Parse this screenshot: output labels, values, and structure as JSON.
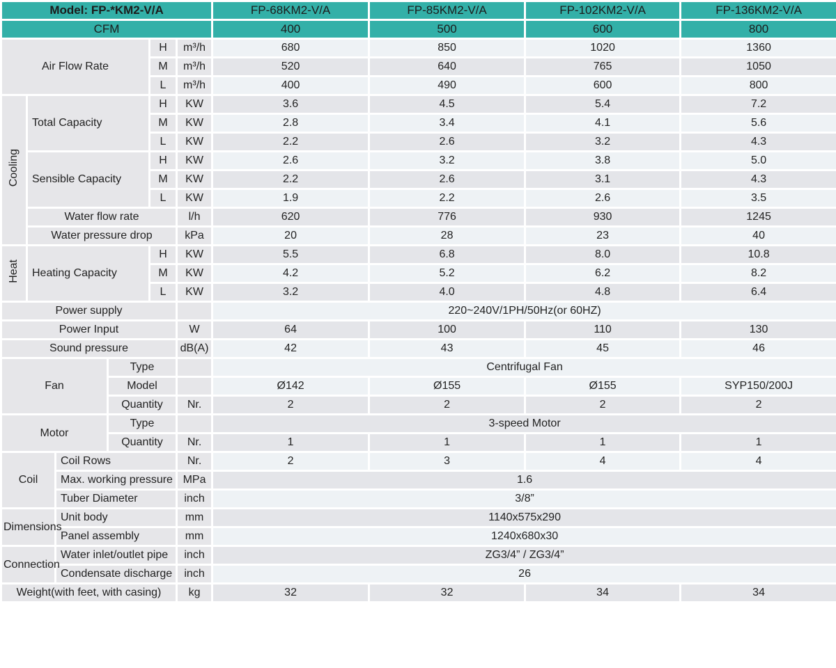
{
  "header": {
    "model_label": "Model: FP-*KM2-V/A",
    "cfm_label": "CFM",
    "models": [
      "FP-68KM2-V/A",
      "FP-85KM2-V/A",
      "FP-102KM2-V/A",
      "FP-136KM2-V/A"
    ],
    "cfm": [
      "400",
      "500",
      "600",
      "800"
    ]
  },
  "air_flow": {
    "label": "Air Flow Rate",
    "rows": [
      {
        "speed": "H",
        "unit": "m³/h",
        "values": [
          "680",
          "850",
          "1020",
          "1360"
        ]
      },
      {
        "speed": "M",
        "unit": "m³/h",
        "values": [
          "520",
          "640",
          "765",
          "1050"
        ]
      },
      {
        "speed": "L",
        "unit": "m³/h",
        "values": [
          "400",
          "490",
          "600",
          "800"
        ]
      }
    ]
  },
  "cooling": {
    "label": "Cooling",
    "total": {
      "label": "Total Capacity",
      "rows": [
        {
          "speed": "H",
          "unit": "KW",
          "values": [
            "3.6",
            "4.5",
            "5.4",
            "7.2"
          ]
        },
        {
          "speed": "M",
          "unit": "KW",
          "values": [
            "2.8",
            "3.4",
            "4.1",
            "5.6"
          ]
        },
        {
          "speed": "L",
          "unit": "KW",
          "values": [
            "2.2",
            "2.6",
            "3.2",
            "4.3"
          ]
        }
      ]
    },
    "sensible": {
      "label": "Sensible Capacity",
      "rows": [
        {
          "speed": "H",
          "unit": "KW",
          "values": [
            "2.6",
            "3.2",
            "3.8",
            "5.0"
          ]
        },
        {
          "speed": "M",
          "unit": "KW",
          "values": [
            "2.2",
            "2.6",
            "3.1",
            "4.3"
          ]
        },
        {
          "speed": "L",
          "unit": "KW",
          "values": [
            "1.9",
            "2.2",
            "2.6",
            "3.5"
          ]
        }
      ]
    },
    "water_flow": {
      "label": "Water flow rate",
      "unit": "l/h",
      "values": [
        "620",
        "776",
        "930",
        "1245"
      ]
    },
    "water_pressure": {
      "label": "Water pressure drop",
      "unit": "kPa",
      "values": [
        "20",
        "28",
        "23",
        "40"
      ]
    }
  },
  "heat": {
    "label": "Heat",
    "capacity": {
      "label": "Heating Capacity",
      "rows": [
        {
          "speed": "H",
          "unit": "KW",
          "values": [
            "5.5",
            "6.8",
            "8.0",
            "10.8"
          ]
        },
        {
          "speed": "M",
          "unit": "KW",
          "values": [
            "4.2",
            "5.2",
            "6.2",
            "8.2"
          ]
        },
        {
          "speed": "L",
          "unit": "KW",
          "values": [
            "3.2",
            "4.0",
            "4.8",
            "6.4"
          ]
        }
      ]
    }
  },
  "power_supply": {
    "label": "Power supply",
    "value": "220~240V/1PH/50Hz(or 60HZ)"
  },
  "power_input": {
    "label": "Power Input",
    "unit": "W",
    "values": [
      "64",
      "100",
      "110",
      "130"
    ]
  },
  "sound": {
    "label": "Sound pressure",
    "unit": "dB(A)",
    "values": [
      "42",
      "43",
      "45",
      "46"
    ]
  },
  "fan": {
    "label": "Fan",
    "type": {
      "label": "Type",
      "value": "Centrifugal Fan"
    },
    "model": {
      "label": "Model",
      "values": [
        "Ø142",
        "Ø155",
        "Ø155",
        "SYP150/200J"
      ]
    },
    "quantity": {
      "label": "Quantity",
      "unit": "Nr.",
      "values": [
        "2",
        "2",
        "2",
        "2"
      ]
    }
  },
  "motor": {
    "label": "Motor",
    "type": {
      "label": "Type",
      "value": "3-speed Motor"
    },
    "quantity": {
      "label": "Quantity",
      "unit": "Nr.",
      "values": [
        "1",
        "1",
        "1",
        "1"
      ]
    }
  },
  "coil": {
    "label": "Coil",
    "rows": {
      "label": "Coil Rows",
      "unit": "Nr.",
      "values": [
        "2",
        "3",
        "4",
        "4"
      ]
    },
    "pressure": {
      "label": "Max. working pressure",
      "unit": "MPa",
      "value": "1.6"
    },
    "tube": {
      "label": "Tuber Diameter",
      "unit": "inch",
      "value": "3/8”"
    }
  },
  "dimensions": {
    "label": "Dimensions",
    "unit_body": {
      "label": "Unit body",
      "unit": "mm",
      "value": "1140x575x290"
    },
    "panel": {
      "label": "Panel assembly",
      "unit": "mm",
      "value": "1240x680x30"
    }
  },
  "connection": {
    "label": "Connection",
    "water": {
      "label": "Water inlet/outlet pipe",
      "unit": "inch",
      "value": "ZG3/4” / ZG3/4”"
    },
    "condensate": {
      "label": "Condensate discharge",
      "unit": "inch",
      "value": "26"
    }
  },
  "weight": {
    "label": "Weight(with feet, with casing)",
    "unit": "kg",
    "values": [
      "32",
      "32",
      "34",
      "34"
    ]
  }
}
